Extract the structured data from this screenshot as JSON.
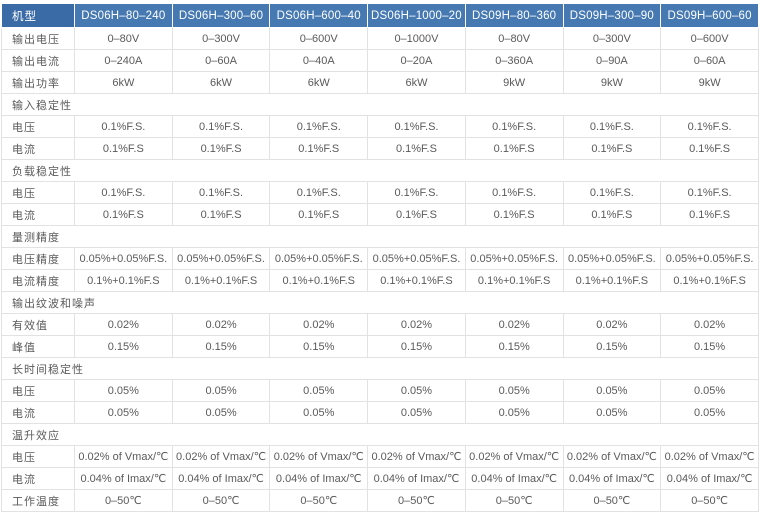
{
  "theme": {
    "header_bg": "#4679b2",
    "header_first_bg": "#3b6ba6",
    "header_text": "#ffffff",
    "body_text": "#5a5a5a",
    "border": "#e2e2e2"
  },
  "table": {
    "header": [
      "机型",
      "DS06H–80–240",
      "DS06H–300–60",
      "DS06H–600–40",
      "DS06H–1000–20",
      "DS09H–80–360",
      "DS09H–300–90",
      "DS09H–600–60"
    ],
    "rows": [
      {
        "type": "data",
        "label": "输出电压",
        "values": [
          "0–80V",
          "0–300V",
          "0–600V",
          "0–1000V",
          "0–80V",
          "0–300V",
          "0–600V"
        ]
      },
      {
        "type": "data",
        "label": "输出电流",
        "values": [
          "0–240A",
          "0–60A",
          "0–40A",
          "0–20A",
          "0–360A",
          "0–90A",
          "0–60A"
        ]
      },
      {
        "type": "data",
        "label": "输出功率",
        "values": [
          "6kW",
          "6kW",
          "6kW",
          "6kW",
          "9kW",
          "9kW",
          "9kW"
        ]
      },
      {
        "type": "section",
        "label": "输入稳定性"
      },
      {
        "type": "data",
        "label": "电压",
        "values": [
          "0.1%F.S.",
          "0.1%F.S.",
          "0.1%F.S.",
          "0.1%F.S.",
          "0.1%F.S.",
          "0.1%F.S.",
          "0.1%F.S."
        ]
      },
      {
        "type": "data",
        "label": "电流",
        "values": [
          "0.1%F.S",
          "0.1%F.S",
          "0.1%F.S",
          "0.1%F.S",
          "0.1%F.S",
          "0.1%F.S",
          "0.1%F.S"
        ]
      },
      {
        "type": "section",
        "label": "负载稳定性"
      },
      {
        "type": "data",
        "label": "电压",
        "values": [
          "0.1%F.S.",
          "0.1%F.S.",
          "0.1%F.S.",
          "0.1%F.S.",
          "0.1%F.S.",
          "0.1%F.S.",
          "0.1%F.S."
        ]
      },
      {
        "type": "data",
        "label": "电流",
        "values": [
          "0.1%F.S",
          "0.1%F.S",
          "0.1%F.S",
          "0.1%F.S",
          "0.1%F.S",
          "0.1%F.S",
          "0.1%F.S"
        ]
      },
      {
        "type": "section",
        "label": "量测精度"
      },
      {
        "type": "data",
        "label": "电压精度",
        "values": [
          "0.05%+0.05%F.S.",
          "0.05%+0.05%F.S.",
          "0.05%+0.05%F.S.",
          "0.05%+0.05%F.S.",
          "0.05%+0.05%F.S.",
          "0.05%+0.05%F.S.",
          "0.05%+0.05%F.S."
        ]
      },
      {
        "type": "data",
        "label": "电流精度",
        "values": [
          "0.1%+0.1%F.S",
          "0.1%+0.1%F.S",
          "0.1%+0.1%F.S",
          "0.1%+0.1%F.S",
          "0.1%+0.1%F.S",
          "0.1%+0.1%F.S",
          "0.1%+0.1%F.S"
        ]
      },
      {
        "type": "section",
        "label": "输出纹波和噪声"
      },
      {
        "type": "data",
        "label": "有效值",
        "values": [
          "0.02%",
          "0.02%",
          "0.02%",
          "0.02%",
          "0.02%",
          "0.02%",
          "0.02%"
        ]
      },
      {
        "type": "data",
        "label": "峰值",
        "values": [
          "0.15%",
          "0.15%",
          "0.15%",
          "0.15%",
          "0.15%",
          "0.15%",
          "0.15%"
        ]
      },
      {
        "type": "section",
        "label": "长时间稳定性"
      },
      {
        "type": "data",
        "label": "电压",
        "values": [
          "0.05%",
          "0.05%",
          "0.05%",
          "0.05%",
          "0.05%",
          "0.05%",
          "0.05%"
        ]
      },
      {
        "type": "data",
        "label": "电流",
        "values": [
          "0.05%",
          "0.05%",
          "0.05%",
          "0.05%",
          "0.05%",
          "0.05%",
          "0.05%"
        ]
      },
      {
        "type": "section",
        "label": "温升效应"
      },
      {
        "type": "data",
        "label": "电压",
        "values": [
          "0.02% of Vmax/℃",
          "0.02% of Vmax/℃",
          "0.02% of Vmax/℃",
          "0.02% of Vmax/℃",
          "0.02% of Vmax/℃",
          "0.02% of Vmax/℃",
          "0.02% of Vmax/℃"
        ]
      },
      {
        "type": "data",
        "label": "电流",
        "values": [
          "0.04% of Imax/℃",
          "0.04% of Imax/℃",
          "0.04% of Imax/℃",
          "0.04% of Imax/℃",
          "0.04% of Imax/℃",
          "0.04% of Imax/℃",
          "0.04% of Imax/℃"
        ]
      },
      {
        "type": "data",
        "label": "工作温度",
        "values": [
          "0–50℃",
          "0–50℃",
          "0–50℃",
          "0–50℃",
          "0–50℃",
          "0–50℃",
          "0–50℃"
        ]
      }
    ]
  }
}
